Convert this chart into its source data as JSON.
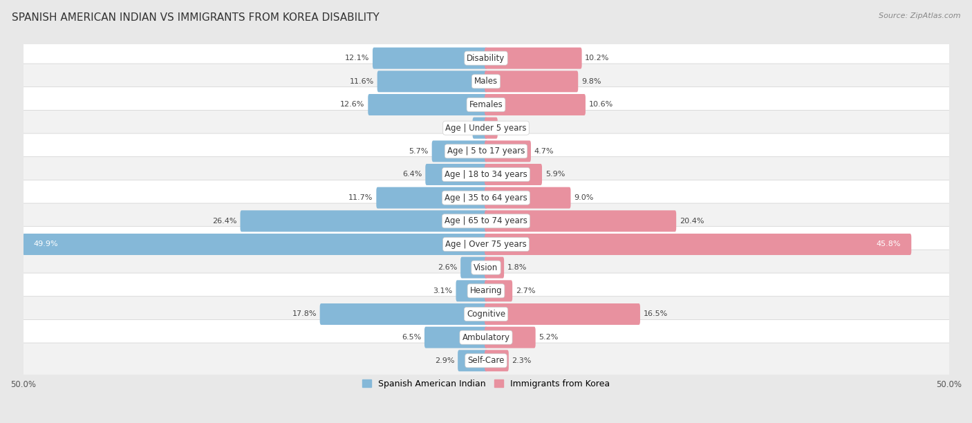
{
  "title": "SPANISH AMERICAN INDIAN VS IMMIGRANTS FROM KOREA DISABILITY",
  "source": "Source: ZipAtlas.com",
  "categories": [
    "Disability",
    "Males",
    "Females",
    "Age | Under 5 years",
    "Age | 5 to 17 years",
    "Age | 18 to 34 years",
    "Age | 35 to 64 years",
    "Age | 65 to 74 years",
    "Age | Over 75 years",
    "Vision",
    "Hearing",
    "Cognitive",
    "Ambulatory",
    "Self-Care"
  ],
  "left_values": [
    12.1,
    11.6,
    12.6,
    1.3,
    5.7,
    6.4,
    11.7,
    26.4,
    49.9,
    2.6,
    3.1,
    17.8,
    6.5,
    2.9
  ],
  "right_values": [
    10.2,
    9.8,
    10.6,
    1.1,
    4.7,
    5.9,
    9.0,
    20.4,
    45.8,
    1.8,
    2.7,
    16.5,
    5.2,
    2.3
  ],
  "left_color": "#85b8d8",
  "right_color": "#e8919f",
  "left_label": "Spanish American Indian",
  "right_label": "Immigrants from Korea",
  "axis_max": 50.0,
  "fig_bg": "#e8e8e8",
  "row_bg_even": "#f0f0f0",
  "row_bg_odd": "#fafafa",
  "title_fontsize": 11,
  "label_fontsize": 8.5,
  "value_fontsize": 8,
  "legend_fontsize": 9,
  "source_fontsize": 8
}
